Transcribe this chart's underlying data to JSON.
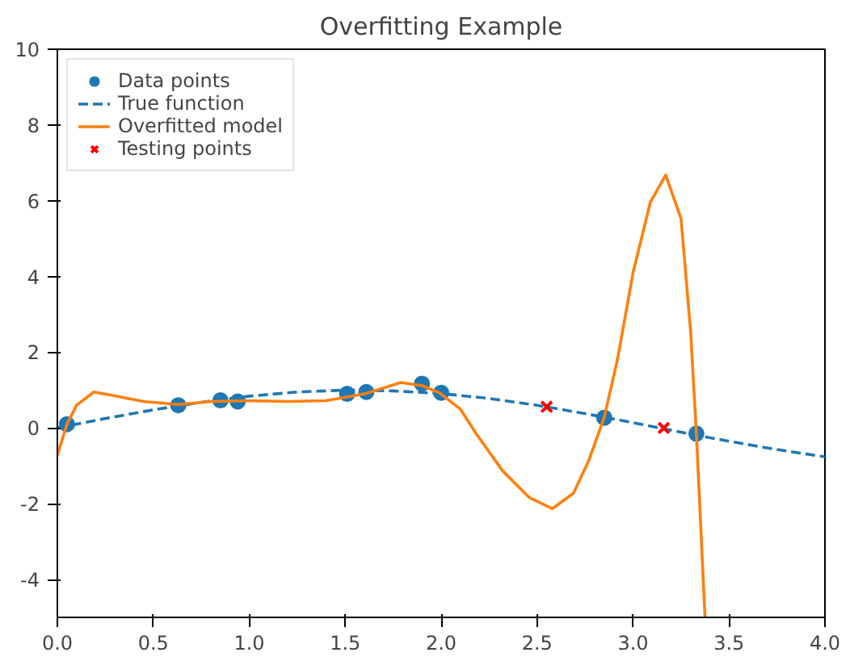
{
  "chart_data": {
    "type": "scatter",
    "title": "Overfitting Example",
    "xlim": [
      0,
      4
    ],
    "ylim": [
      -5,
      10
    ],
    "xticks": [
      {
        "value": 0,
        "label": "0.0"
      },
      {
        "value": 0.5,
        "label": "0.5"
      },
      {
        "value": 1,
        "label": "1.0"
      },
      {
        "value": 1.5,
        "label": "1.5"
      },
      {
        "value": 2,
        "label": "2.0"
      },
      {
        "value": 2.5,
        "label": "2.5"
      },
      {
        "value": 3,
        "label": "3.0"
      },
      {
        "value": 3.5,
        "label": "3.5"
      },
      {
        "value": 4,
        "label": "4.0"
      }
    ],
    "yticks": [
      -4,
      -2,
      0,
      2,
      4,
      6,
      8,
      10
    ],
    "grid": false,
    "legend": "top left",
    "series": [
      {
        "name": "Data points",
        "marker": "circle",
        "color": "#1f77b4",
        "x": [
          0.05,
          0.63,
          0.85,
          0.94,
          1.51,
          1.61,
          1.9,
          2.0,
          2.85,
          3.33
        ],
        "values": [
          0.1,
          0.6,
          0.73,
          0.7,
          0.9,
          0.95,
          1.17,
          0.93,
          0.27,
          -0.15
        ]
      },
      {
        "name": "True function",
        "type": "line",
        "line_style": "dashed",
        "color": "#1f77b4",
        "x": [
          0,
          0.25,
          0.5,
          0.75,
          1.0,
          1.25,
          1.5,
          1.75,
          2.0,
          2.25,
          2.5,
          2.75,
          3.0,
          3.25,
          3.5,
          3.75,
          4.0
        ],
        "values": [
          0,
          0.25,
          0.48,
          0.68,
          0.84,
          0.95,
          1.0,
          0.98,
          0.91,
          0.78,
          0.6,
          0.38,
          0.14,
          -0.11,
          -0.35,
          -0.57,
          -0.76
        ]
      },
      {
        "name": "Overfitted model",
        "type": "line",
        "line_style": "solid",
        "color": "#ff7f0e",
        "x": [
          0,
          0.05,
          0.1,
          0.19,
          0.3,
          0.45,
          0.63,
          0.8,
          1.0,
          1.2,
          1.4,
          1.6,
          1.79,
          1.9,
          1.99,
          2.1,
          2.18,
          2.32,
          2.46,
          2.58,
          2.69,
          2.77,
          2.85,
          2.92,
          3.0,
          3.09,
          3.17,
          3.25,
          3.3,
          3.33,
          3.375
        ],
        "values": [
          -0.72,
          0.1,
          0.6,
          0.95,
          0.85,
          0.7,
          0.62,
          0.7,
          0.72,
          0.7,
          0.72,
          0.9,
          1.2,
          1.12,
          0.93,
          0.5,
          -0.13,
          -1.13,
          -1.84,
          -2.13,
          -1.72,
          -0.85,
          0.28,
          1.84,
          4.1,
          5.96,
          6.68,
          5.53,
          2.55,
          -0.15,
          -5
        ]
      },
      {
        "name": "Testing points",
        "marker": "cross",
        "color": "#ff0000",
        "x": [
          2.55,
          3.16
        ],
        "values": [
          0.56,
          0.0
        ]
      }
    ]
  }
}
